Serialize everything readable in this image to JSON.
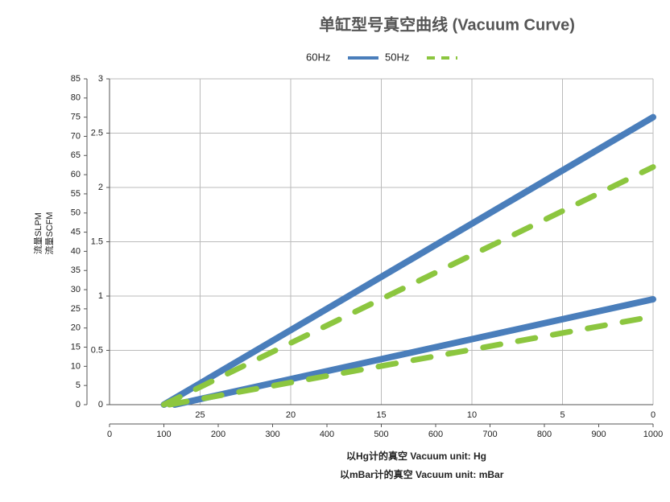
{
  "chart_data": {
    "type": "line",
    "title": "单缸型号真空曲线 (Vacuum Curve)",
    "y_label": "流量SLPM",
    "y2_label": "流量SCFM",
    "x2_label": "以Hg计的真空 Vacuum unit: Hg",
    "x_label": "以mBar计的真空 Vacuum unit: mBar",
    "xlim": [
      0,
      1000
    ],
    "xticks": [
      0,
      100,
      200,
      300,
      400,
      500,
      600,
      700,
      800,
      900,
      1000
    ],
    "x2lim": [
      30,
      0
    ],
    "x2ticks": [
      25,
      20,
      15,
      10,
      5,
      0
    ],
    "ylim": [
      0,
      85
    ],
    "yticks": [
      0,
      5,
      10,
      15,
      20,
      25,
      30,
      35,
      40,
      45,
      50,
      55,
      60,
      65,
      70,
      75,
      80,
      85
    ],
    "y2lim": [
      0,
      3
    ],
    "y2ticks": [
      0,
      0.5,
      1,
      1.5,
      2,
      2.5,
      3
    ],
    "grid": true,
    "series": [
      {
        "name": "60Hz",
        "color": "#4a7ebb",
        "dashed": false,
        "lines": [
          {
            "x": [
              100,
              1000
            ],
            "values": [
              0,
              75
            ]
          },
          {
            "x": [
              120,
              1000
            ],
            "values": [
              0,
              27.5
            ]
          }
        ]
      },
      {
        "name": "50Hz",
        "color": "#8cc63f",
        "dashed": true,
        "lines": [
          {
            "x": [
              100,
              1000
            ],
            "values": [
              0,
              62
            ]
          },
          {
            "x": [
              110,
              1000
            ],
            "values": [
              0,
              23
            ]
          }
        ]
      }
    ]
  }
}
